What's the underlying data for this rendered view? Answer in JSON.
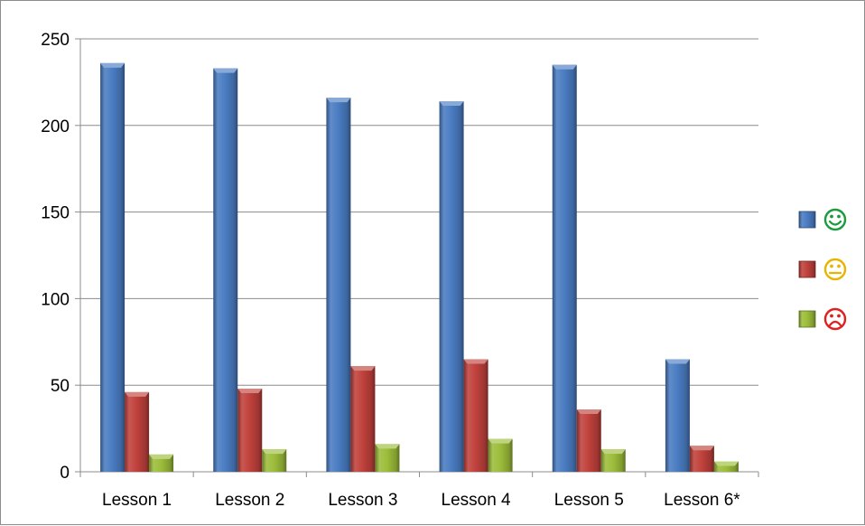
{
  "chart_data": {
    "type": "bar",
    "title": "",
    "xlabel": "",
    "ylabel": "",
    "categories": [
      "Lesson 1",
      "Lesson 2",
      "Lesson 3",
      "Lesson 4",
      "Lesson 5",
      "Lesson 6*"
    ],
    "ylim": [
      0,
      250
    ],
    "yticks": [
      0,
      50,
      100,
      150,
      200,
      250
    ],
    "grid": true,
    "legend_position": "right",
    "series": [
      {
        "legend_icon": "smiley-happy-icon",
        "color": "#4a7cc2",
        "legend_color": "#1a9c3c",
        "values": [
          236,
          233,
          216,
          214,
          235,
          65
        ]
      },
      {
        "legend_icon": "smiley-neutral-icon",
        "color": "#c0413c",
        "legend_color": "#e8b400",
        "values": [
          46,
          48,
          61,
          65,
          36,
          15
        ]
      },
      {
        "legend_icon": "smiley-sad-icon",
        "color": "#9cbd3a",
        "legend_color": "#e0201c",
        "values": [
          10,
          13,
          16,
          19,
          13,
          6
        ]
      }
    ]
  }
}
